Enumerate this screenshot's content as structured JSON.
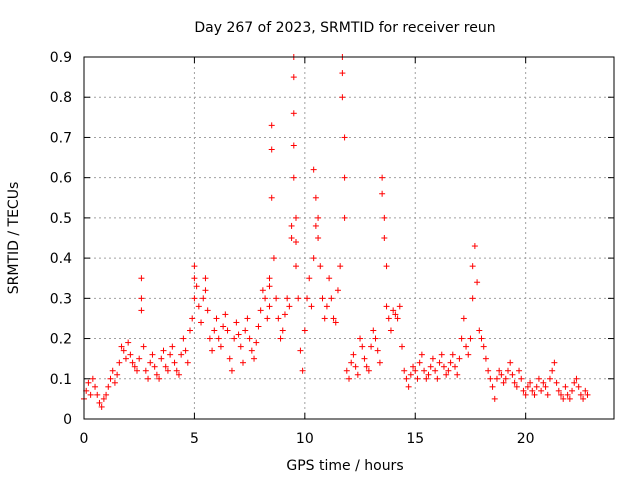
{
  "chart_data": {
    "type": "scatter",
    "title": "Day 267 of 2023, SRMTID for receiver reun",
    "xlabel": "GPS time / hours",
    "ylabel": "SRMTID / TECUs",
    "xlim": [
      0,
      24
    ],
    "ylim": [
      0,
      0.9
    ],
    "xticks": [
      0,
      5,
      10,
      15,
      20
    ],
    "yticks": [
      0,
      0.1,
      0.2,
      0.3,
      0.4,
      0.5,
      0.6,
      0.7,
      0.8,
      0.9
    ],
    "grid": true,
    "marker": "+",
    "color": "#ff0000",
    "series": [
      {
        "name": "SRMTID",
        "x": [
          0.0,
          0.1,
          0.2,
          0.3,
          0.4,
          0.5,
          0.6,
          0.7,
          0.8,
          0.9,
          1.0,
          1.1,
          1.2,
          1.3,
          1.4,
          1.5,
          1.6,
          1.7,
          1.8,
          1.9,
          2.0,
          2.1,
          2.2,
          2.3,
          2.4,
          2.5,
          2.6,
          2.6,
          2.6,
          2.7,
          2.8,
          2.9,
          3.0,
          3.1,
          3.2,
          3.3,
          3.4,
          3.5,
          3.6,
          3.7,
          3.8,
          3.9,
          4.0,
          4.1,
          4.2,
          4.3,
          4.4,
          4.5,
          4.6,
          4.7,
          4.8,
          4.9,
          5.0,
          5.0,
          5.0,
          5.1,
          5.2,
          5.3,
          5.4,
          5.5,
          5.5,
          5.6,
          5.7,
          5.8,
          5.9,
          6.0,
          6.1,
          6.2,
          6.3,
          6.4,
          6.5,
          6.6,
          6.7,
          6.8,
          6.9,
          7.0,
          7.1,
          7.2,
          7.3,
          7.4,
          7.5,
          7.6,
          7.7,
          7.8,
          7.9,
          8.0,
          8.1,
          8.2,
          8.3,
          8.4,
          8.4,
          8.4,
          8.5,
          8.5,
          8.5,
          8.6,
          8.7,
          8.8,
          8.9,
          9.0,
          9.1,
          9.2,
          9.3,
          9.4,
          9.4,
          9.5,
          9.5,
          9.5,
          9.5,
          9.5,
          9.6,
          9.6,
          9.6,
          9.7,
          9.8,
          9.9,
          10.0,
          10.1,
          10.2,
          10.3,
          10.4,
          10.4,
          10.5,
          10.5,
          10.6,
          10.6,
          10.7,
          10.8,
          10.9,
          11.0,
          11.1,
          11.2,
          11.3,
          11.4,
          11.5,
          11.6,
          11.7,
          11.7,
          11.7,
          11.8,
          11.8,
          11.8,
          11.9,
          12.0,
          12.1,
          12.2,
          12.3,
          12.4,
          12.5,
          12.6,
          12.7,
          12.8,
          12.9,
          13.0,
          13.1,
          13.2,
          13.3,
          13.4,
          13.5,
          13.5,
          13.6,
          13.6,
          13.7,
          13.7,
          13.8,
          13.9,
          14.0,
          14.1,
          14.2,
          14.3,
          14.4,
          14.5,
          14.6,
          14.7,
          14.8,
          14.9,
          15.0,
          15.1,
          15.2,
          15.3,
          15.4,
          15.5,
          15.6,
          15.7,
          15.8,
          15.9,
          16.0,
          16.1,
          16.2,
          16.3,
          16.4,
          16.5,
          16.6,
          16.7,
          16.8,
          16.9,
          17.0,
          17.1,
          17.2,
          17.3,
          17.4,
          17.5,
          17.6,
          17.6,
          17.7,
          17.8,
          17.9,
          18.0,
          18.1,
          18.2,
          18.3,
          18.4,
          18.5,
          18.6,
          18.7,
          18.8,
          18.9,
          19.0,
          19.1,
          19.2,
          19.3,
          19.4,
          19.5,
          19.6,
          19.7,
          19.8,
          19.9,
          20.0,
          20.1,
          20.2,
          20.3,
          20.4,
          20.5,
          20.6,
          20.7,
          20.8,
          20.9,
          21.0,
          21.1,
          21.2,
          21.3,
          21.4,
          21.5,
          21.6,
          21.7,
          21.8,
          21.9,
          22.0,
          22.1,
          22.2,
          22.3,
          22.4,
          22.5,
          22.6,
          22.7,
          22.8
        ],
        "y": [
          0.05,
          0.07,
          0.09,
          0.06,
          0.1,
          0.08,
          0.06,
          0.04,
          0.03,
          0.05,
          0.06,
          0.08,
          0.1,
          0.12,
          0.09,
          0.11,
          0.14,
          0.18,
          0.17,
          0.15,
          0.19,
          0.16,
          0.14,
          0.13,
          0.12,
          0.15,
          0.35,
          0.3,
          0.27,
          0.18,
          0.12,
          0.1,
          0.14,
          0.16,
          0.13,
          0.11,
          0.1,
          0.15,
          0.17,
          0.13,
          0.12,
          0.16,
          0.18,
          0.14,
          0.12,
          0.11,
          0.16,
          0.2,
          0.17,
          0.14,
          0.22,
          0.25,
          0.3,
          0.35,
          0.38,
          0.33,
          0.28,
          0.24,
          0.3,
          0.35,
          0.32,
          0.27,
          0.2,
          0.17,
          0.22,
          0.25,
          0.2,
          0.18,
          0.23,
          0.26,
          0.22,
          0.15,
          0.12,
          0.2,
          0.24,
          0.21,
          0.18,
          0.14,
          0.22,
          0.25,
          0.2,
          0.17,
          0.15,
          0.19,
          0.23,
          0.27,
          0.32,
          0.3,
          0.25,
          0.35,
          0.33,
          0.28,
          0.73,
          0.67,
          0.55,
          0.4,
          0.3,
          0.25,
          0.2,
          0.22,
          0.26,
          0.3,
          0.28,
          0.45,
          0.48,
          0.9,
          0.85,
          0.76,
          0.68,
          0.6,
          0.5,
          0.44,
          0.38,
          0.3,
          0.17,
          0.12,
          0.22,
          0.3,
          0.35,
          0.28,
          0.4,
          0.62,
          0.55,
          0.48,
          0.45,
          0.5,
          0.38,
          0.3,
          0.25,
          0.28,
          0.35,
          0.3,
          0.25,
          0.24,
          0.32,
          0.38,
          0.9,
          0.86,
          0.8,
          0.7,
          0.6,
          0.5,
          0.12,
          0.1,
          0.14,
          0.16,
          0.13,
          0.11,
          0.2,
          0.18,
          0.15,
          0.13,
          0.12,
          0.18,
          0.22,
          0.2,
          0.17,
          0.14,
          0.6,
          0.56,
          0.5,
          0.45,
          0.38,
          0.28,
          0.25,
          0.22,
          0.27,
          0.26,
          0.25,
          0.28,
          0.18,
          0.12,
          0.1,
          0.08,
          0.11,
          0.13,
          0.12,
          0.1,
          0.14,
          0.16,
          0.12,
          0.1,
          0.11,
          0.13,
          0.15,
          0.12,
          0.1,
          0.14,
          0.16,
          0.13,
          0.11,
          0.12,
          0.14,
          0.16,
          0.13,
          0.11,
          0.15,
          0.2,
          0.25,
          0.18,
          0.16,
          0.2,
          0.3,
          0.38,
          0.43,
          0.34,
          0.22,
          0.2,
          0.18,
          0.15,
          0.12,
          0.1,
          0.08,
          0.05,
          0.1,
          0.12,
          0.11,
          0.09,
          0.1,
          0.12,
          0.14,
          0.11,
          0.09,
          0.08,
          0.12,
          0.1,
          0.07,
          0.06,
          0.08,
          0.09,
          0.07,
          0.06,
          0.08,
          0.1,
          0.07,
          0.09,
          0.08,
          0.06,
          0.1,
          0.12,
          0.14,
          0.09,
          0.07,
          0.06,
          0.05,
          0.08,
          0.06,
          0.05,
          0.07,
          0.09,
          0.1,
          0.08,
          0.06,
          0.05,
          0.07,
          0.06
        ]
      }
    ]
  }
}
